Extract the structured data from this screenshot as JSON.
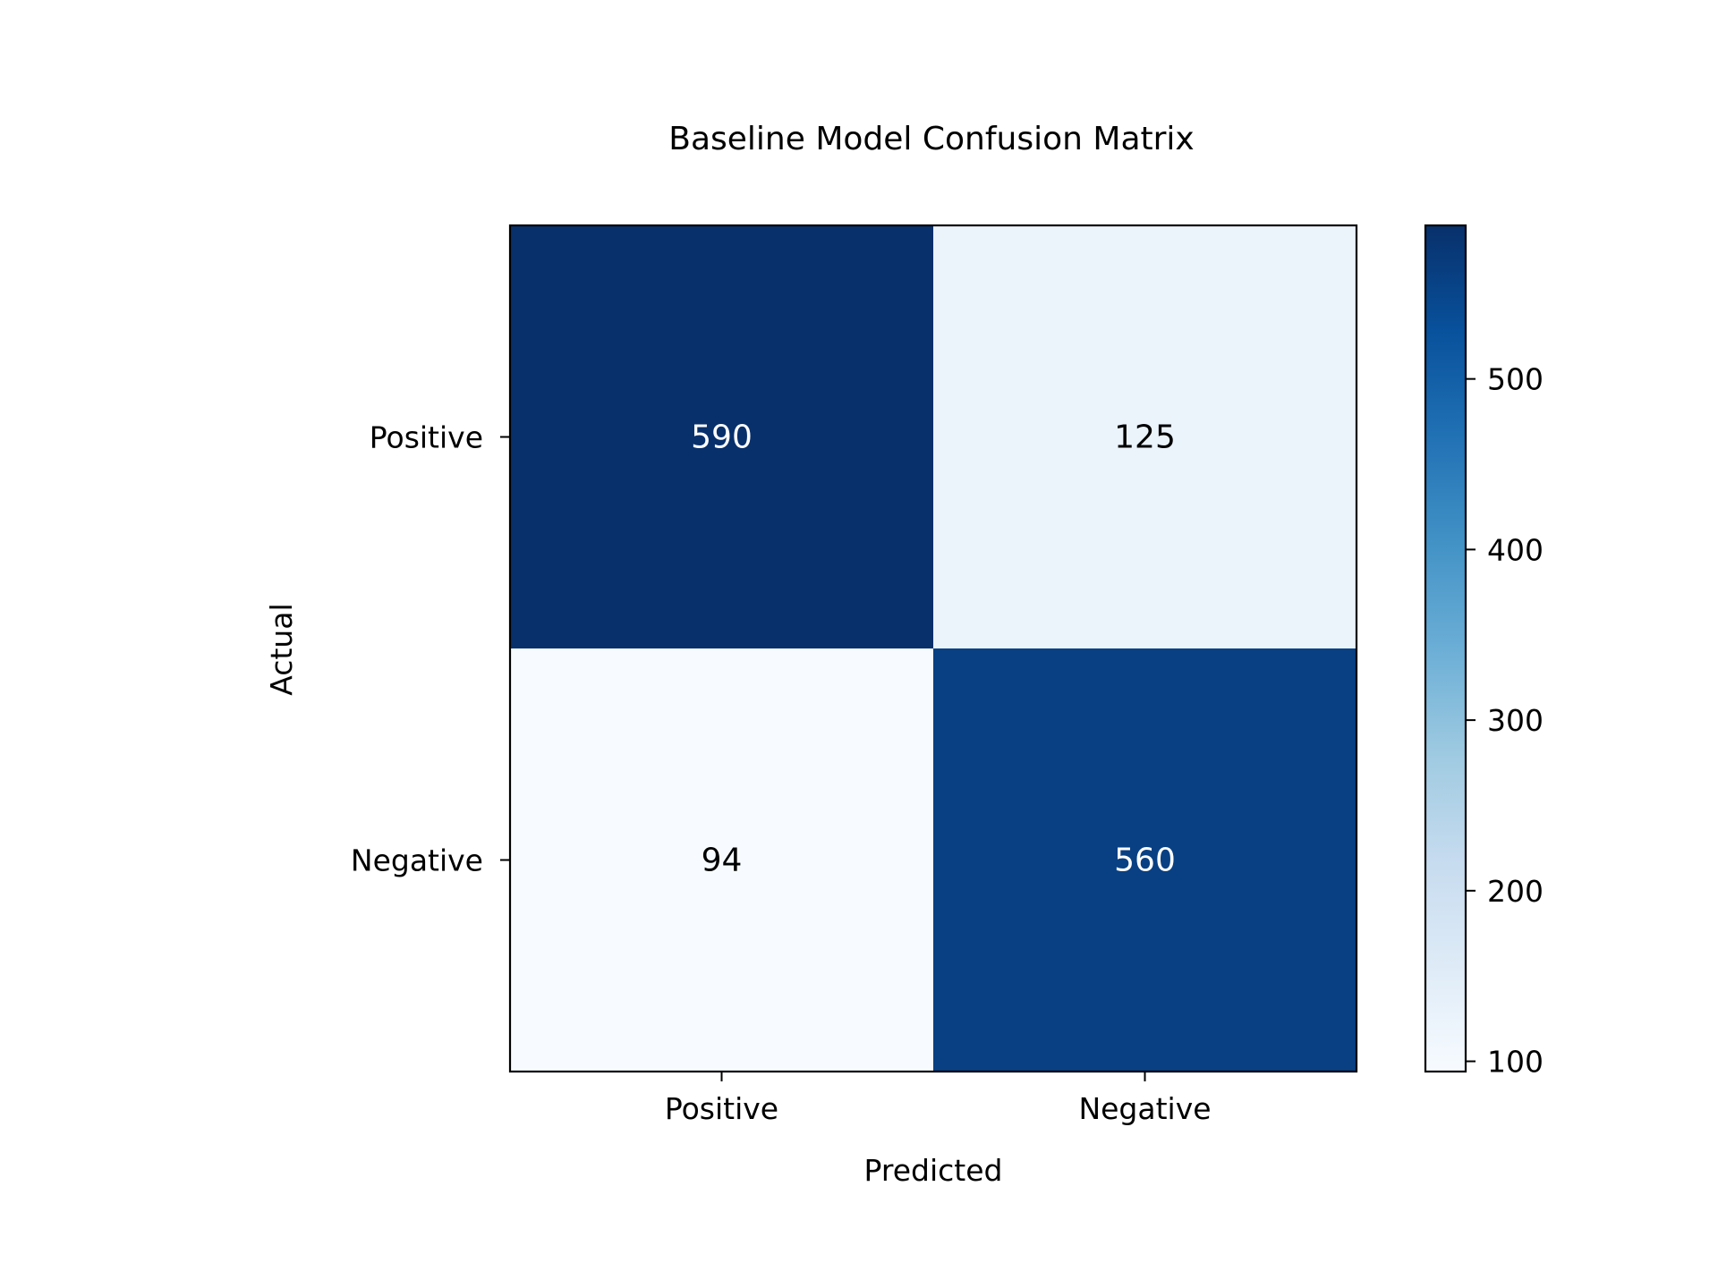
{
  "chart_data": {
    "type": "heatmap",
    "title": "Baseline Model Confusion Matrix",
    "xlabel": "Predicted",
    "ylabel": "Actual",
    "x_categories": [
      "Positive",
      "Negative"
    ],
    "y_categories": [
      "Positive",
      "Negative"
    ],
    "values": [
      [
        590,
        125
      ],
      [
        94,
        560
      ]
    ],
    "colormap": "Blues",
    "color_range": [
      94,
      590
    ],
    "colorbar_ticks": [
      100,
      200,
      300,
      400,
      500
    ],
    "cell_text_light": "#ffffff",
    "cell_text_dark": "#000000",
    "grid": false
  }
}
